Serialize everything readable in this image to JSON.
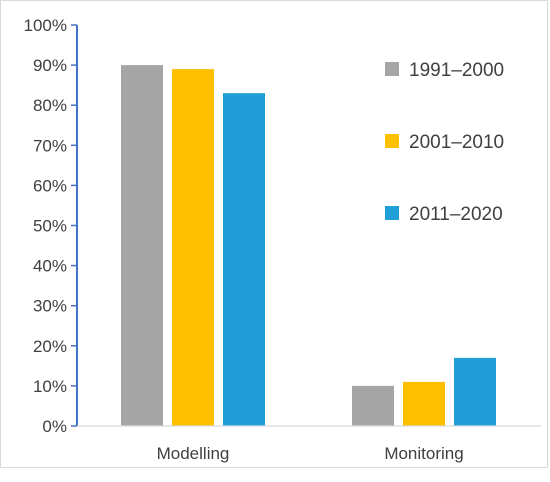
{
  "chart_data": {
    "type": "bar",
    "categories": [
      "Modelling",
      "Monitoring"
    ],
    "series": [
      {
        "name": "1991–2000",
        "color": "#a5a5a5",
        "values": [
          90,
          10
        ]
      },
      {
        "name": "2001–2010",
        "color": "#ffc000",
        "values": [
          89,
          11
        ]
      },
      {
        "name": "2011–2020",
        "color": "#1f9ed8",
        "values": [
          83,
          17
        ]
      }
    ],
    "ylim": [
      0,
      100
    ],
    "y_ticks": [
      0,
      10,
      20,
      30,
      40,
      50,
      60,
      70,
      80,
      90,
      100
    ],
    "y_tick_labels": [
      "0%",
      "10%",
      "20%",
      "30%",
      "40%",
      "50%",
      "60%",
      "70%",
      "80%",
      "90%",
      "100%"
    ],
    "title": "",
    "xlabel": "",
    "ylabel": "",
    "grid": false,
    "legend_position": "right",
    "axis_color": "#4472c4"
  }
}
